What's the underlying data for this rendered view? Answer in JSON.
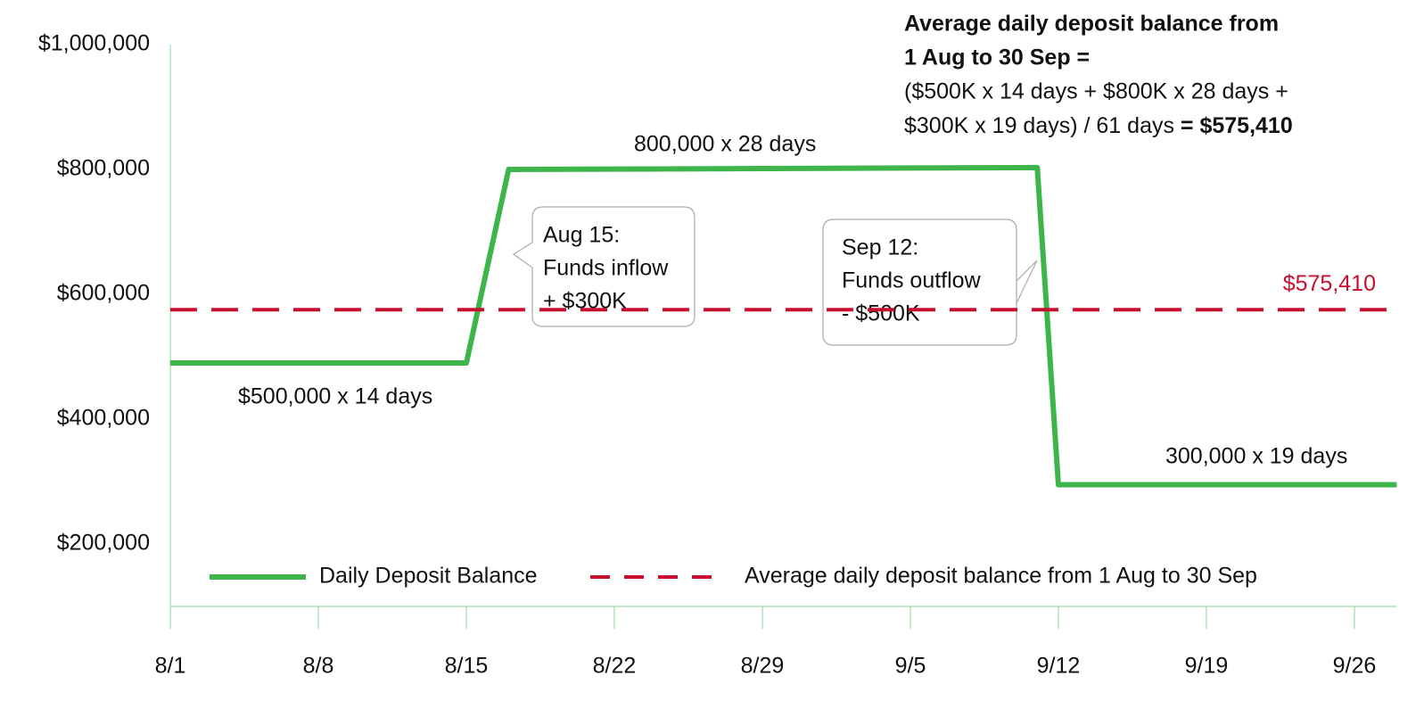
{
  "chart_data": {
    "type": "line",
    "title_lines": [
      "Average daily deposit balance from",
      "1 Aug to 30 Sep ="
    ],
    "formula_lines": [
      "($500K x 14 days + $800K x 28 days +"
    ],
    "formula_last": {
      "text": "$300K x 19 days) / 61 days ",
      "result": "= $575,410"
    },
    "xlim": [
      "8/1",
      "9/28"
    ],
    "xticks": [
      "8/1",
      "8/8",
      "8/15",
      "8/22",
      "8/29",
      "9/5",
      "9/12",
      "9/19",
      "9/26"
    ],
    "ylim": [
      100000,
      1000000
    ],
    "yticks": [
      {
        "value": 200000,
        "label": "$200,000"
      },
      {
        "value": 400000,
        "label": "$400,000"
      },
      {
        "value": 600000,
        "label": "$600,000"
      },
      {
        "value": 800000,
        "label": "$800,000"
      },
      {
        "value": 1000000,
        "label": "$1,000,000"
      }
    ],
    "legend": "bottom",
    "series": [
      {
        "name": "Daily Deposit Balance",
        "color": "#3db54a",
        "style": "solid",
        "x": [
          "8/1",
          "8/15",
          "8/17",
          "9/11",
          "9/12",
          "9/28"
        ],
        "values": [
          490000,
          490000,
          800000,
          803000,
          295000,
          295000
        ]
      },
      {
        "name": "Average daily deposit balance from 1 Aug to 30 Sep",
        "color": "#c8102e",
        "style": "dashed",
        "x": [
          "8/1",
          "9/28"
        ],
        "values": [
          575410,
          575410
        ],
        "value_labels": [
          null,
          "$575,410"
        ]
      }
    ],
    "annotations": [
      "$500,000 x 14 days",
      "800,000 x 28 days",
      "300,000 x 19 days"
    ],
    "callouts": [
      {
        "lines": [
          "Aug 15:",
          "Funds inflow",
          "+ $300K"
        ]
      },
      {
        "lines": [
          "Sep 12:",
          "Funds outflow",
          "- $500K"
        ]
      }
    ]
  }
}
